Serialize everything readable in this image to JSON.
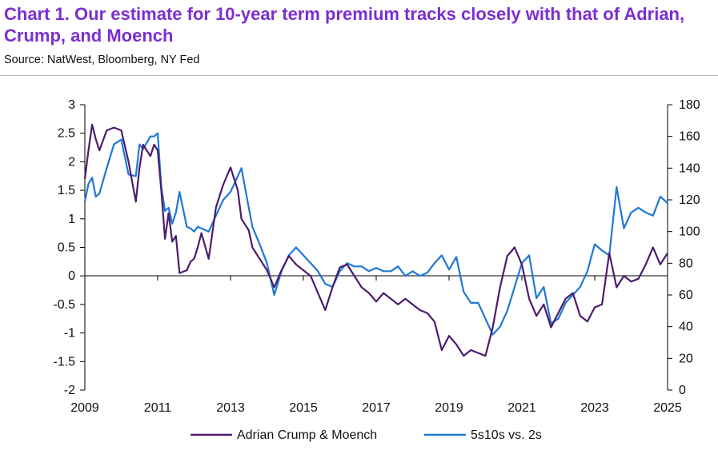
{
  "header": {
    "title": "Chart 1. Our estimate for 10-year term premium tracks closely with that of Adrian, Crump, and Moench",
    "source": "Source:  NatWest, Bloomberg, NY Fed"
  },
  "chart_data": {
    "type": "line",
    "x_ticks": [
      "2009",
      "2011",
      "2013",
      "2015",
      "2017",
      "2019",
      "2021",
      "2023",
      "2025"
    ],
    "y_left_ticks": [
      "3",
      "2.5",
      "2",
      "1.5",
      "1",
      "0.5",
      "0",
      "-0.5",
      "-1",
      "-1.5",
      "-2"
    ],
    "y_right_ticks": [
      "180",
      "160",
      "140",
      "120",
      "100",
      "80",
      "60",
      "40",
      "20",
      "0"
    ],
    "xlim": [
      2009,
      2025
    ],
    "ylim_left": [
      -2,
      3
    ],
    "ylim_right": [
      0,
      180
    ],
    "grid": false,
    "legend_position": "bottom",
    "colors": {
      "acm": "#4b1c6e",
      "spread": "#1f78d7",
      "axis": "#000000",
      "title": "#7b2fd1"
    },
    "series": [
      {
        "name": "Adrian Crump & Moench",
        "axis": "left",
        "x": [
          2009.0,
          2009.1,
          2009.2,
          2009.3,
          2009.4,
          2009.6,
          2009.8,
          2010.0,
          2010.2,
          2010.4,
          2010.5,
          2010.6,
          2010.8,
          2010.9,
          2011.0,
          2011.1,
          2011.2,
          2011.3,
          2011.4,
          2011.5,
          2011.6,
          2011.8,
          2011.9,
          2012.0,
          2012.1,
          2012.2,
          2012.4,
          2012.6,
          2012.8,
          2013.0,
          2013.2,
          2013.3,
          2013.5,
          2013.6,
          2013.8,
          2014.0,
          2014.2,
          2014.4,
          2014.6,
          2014.8,
          2015.0,
          2015.2,
          2015.4,
          2015.6,
          2015.8,
          2016.0,
          2016.2,
          2016.4,
          2016.6,
          2016.8,
          2017.0,
          2017.2,
          2017.4,
          2017.6,
          2017.8,
          2018.0,
          2018.2,
          2018.4,
          2018.6,
          2018.8,
          2019.0,
          2019.2,
          2019.4,
          2019.6,
          2019.8,
          2020.0,
          2020.2,
          2020.4,
          2020.6,
          2020.8,
          2021.0,
          2021.2,
          2021.4,
          2021.6,
          2021.8,
          2022.0,
          2022.2,
          2022.4,
          2022.6,
          2022.8,
          2023.0,
          2023.2,
          2023.4,
          2023.6,
          2023.8,
          2024.0,
          2024.2,
          2024.4,
          2024.6,
          2024.8,
          2025.0
        ],
        "values": [
          1.7,
          2.2,
          2.65,
          2.4,
          2.2,
          2.55,
          2.6,
          2.55,
          2.0,
          1.3,
          1.9,
          2.3,
          2.1,
          2.3,
          2.2,
          1.5,
          0.65,
          1.1,
          0.6,
          0.7,
          0.05,
          0.1,
          0.25,
          0.3,
          0.5,
          0.75,
          0.3,
          1.2,
          1.6,
          1.9,
          1.5,
          1.0,
          0.8,
          0.5,
          0.3,
          0.1,
          -0.2,
          0.1,
          0.35,
          0.2,
          0.1,
          0.0,
          -0.3,
          -0.6,
          -0.2,
          0.15,
          0.2,
          0.0,
          -0.2,
          -0.3,
          -0.45,
          -0.3,
          -0.4,
          -0.5,
          -0.4,
          -0.5,
          -0.6,
          -0.65,
          -0.8,
          -1.3,
          -1.05,
          -1.2,
          -1.4,
          -1.3,
          -1.35,
          -1.4,
          -0.9,
          -0.2,
          0.35,
          0.5,
          0.2,
          -0.4,
          -0.7,
          -0.5,
          -0.9,
          -0.65,
          -0.4,
          -0.3,
          -0.7,
          -0.8,
          -0.55,
          -0.5,
          0.4,
          -0.2,
          0.0,
          -0.1,
          -0.05,
          0.2,
          0.5,
          0.2,
          0.4
        ]
      },
      {
        "name": "5s10s vs. 2s",
        "axis": "right",
        "x": [
          2009.0,
          2009.1,
          2009.2,
          2009.3,
          2009.4,
          2009.6,
          2009.8,
          2010.0,
          2010.2,
          2010.4,
          2010.5,
          2010.6,
          2010.8,
          2010.9,
          2011.0,
          2011.1,
          2011.2,
          2011.3,
          2011.4,
          2011.5,
          2011.6,
          2011.8,
          2011.9,
          2012.0,
          2012.1,
          2012.2,
          2012.4,
          2012.6,
          2012.8,
          2013.0,
          2013.2,
          2013.3,
          2013.5,
          2013.6,
          2013.8,
          2014.0,
          2014.2,
          2014.4,
          2014.6,
          2014.8,
          2015.0,
          2015.2,
          2015.4,
          2015.6,
          2015.8,
          2016.0,
          2016.2,
          2016.4,
          2016.6,
          2016.8,
          2017.0,
          2017.2,
          2017.4,
          2017.6,
          2017.8,
          2018.0,
          2018.2,
          2018.4,
          2018.6,
          2018.8,
          2019.0,
          2019.2,
          2019.4,
          2019.6,
          2019.8,
          2020.0,
          2020.2,
          2020.4,
          2020.6,
          2020.8,
          2021.0,
          2021.2,
          2021.4,
          2021.6,
          2021.8,
          2022.0,
          2022.2,
          2022.4,
          2022.6,
          2022.8,
          2023.0,
          2023.2,
          2023.4,
          2023.6,
          2023.8,
          2024.0,
          2024.2,
          2024.4,
          2024.6,
          2024.8,
          2025.0
        ],
        "values": [
          119,
          130,
          134,
          122,
          124,
          140,
          155,
          158,
          136,
          135,
          155,
          152,
          160,
          160,
          162,
          128,
          113,
          115,
          105,
          112,
          125,
          103,
          102,
          100,
          103,
          102,
          100,
          110,
          120,
          125,
          135,
          140,
          115,
          103,
          92,
          80,
          60,
          75,
          85,
          90,
          85,
          80,
          75,
          67,
          65,
          75,
          80,
          78,
          78,
          75,
          77,
          75,
          75,
          78,
          72,
          75,
          72,
          74,
          80,
          85,
          76,
          84,
          62,
          55,
          55,
          45,
          35,
          40,
          50,
          65,
          80,
          85,
          58,
          65,
          42,
          45,
          55,
          60,
          65,
          75,
          92,
          88,
          85,
          128,
          102,
          112,
          115,
          112,
          110,
          122,
          118
        ]
      }
    ]
  }
}
